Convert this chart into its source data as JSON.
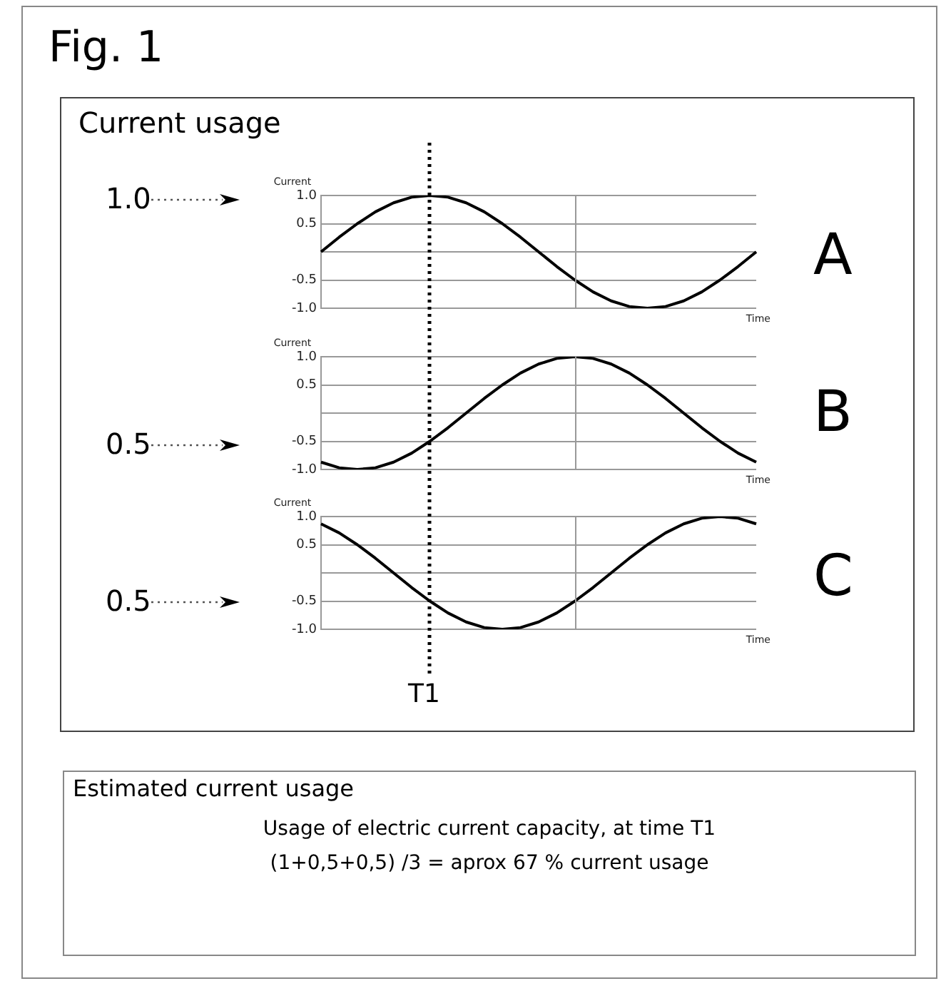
{
  "chart_data": [
    {
      "type": "line",
      "title": "Fig. 1",
      "subtitle": "Current usage",
      "ylabel": "Current",
      "xlabel": "Time",
      "annotations": [
        "1.0",
        "A"
      ],
      "categories": [
        null,
        null,
        null,
        null,
        null,
        null,
        null,
        null,
        null,
        null,
        null,
        null,
        null,
        null,
        null,
        null,
        null,
        null,
        null,
        null,
        null,
        null,
        null,
        null,
        null
      ],
      "ylim": [
        -1,
        1
      ],
      "yticks": [
        {
          "value": 1,
          "label": "1.0"
        },
        {
          "value": 0.5,
          "label": "0.5"
        },
        {
          "value": 0,
          "label": null
        },
        {
          "value": -0.5,
          "label": "-0.5"
        },
        {
          "value": -1,
          "label": "-1.0"
        }
      ],
      "tick_labels": "y",
      "grid": "y",
      "marker": "none",
      "series": [
        {
          "color": "#000000",
          "values": [
            0,
            0.26,
            0.5,
            0.71,
            0.87,
            0.97,
            1,
            0.97,
            0.87,
            0.71,
            0.5,
            0.26,
            0,
            -0.26,
            -0.5,
            -0.71,
            -0.87,
            -0.97,
            -1,
            -0.97,
            -0.87,
            -0.71,
            -0.5,
            -0.26,
            0
          ]
        }
      ]
    },
    {
      "type": "line",
      "ylabel": "Current",
      "xlabel": "Time",
      "annotations": [
        "0.5",
        "B"
      ],
      "categories": [
        null,
        null,
        null,
        null,
        null,
        null,
        null,
        null,
        null,
        null,
        null,
        null,
        null,
        null,
        null,
        null,
        null,
        null,
        null,
        null,
        null,
        null,
        null,
        null,
        null
      ],
      "ylim": [
        -1,
        1
      ],
      "yticks": [
        {
          "value": 1,
          "label": "1.0"
        },
        {
          "value": 0.5,
          "label": "0.5"
        },
        {
          "value": 0,
          "label": null
        },
        {
          "value": -0.5,
          "label": "-0.5"
        },
        {
          "value": -1,
          "label": "-1.0"
        }
      ],
      "tick_labels": "y",
      "grid": "y",
      "marker": "none",
      "series": [
        {
          "color": "#000000",
          "values": [
            -0.87,
            -0.97,
            -1,
            -0.97,
            -0.87,
            -0.71,
            -0.5,
            -0.26,
            0,
            0.26,
            0.5,
            0.71,
            0.87,
            0.97,
            1,
            0.97,
            0.87,
            0.71,
            0.5,
            0.26,
            0,
            -0.26,
            -0.5,
            -0.71,
            -0.87
          ]
        }
      ]
    },
    {
      "type": "line",
      "ylabel": "Current",
      "xlabel": "Time",
      "annotations": [
        "0.5",
        "C",
        "T1"
      ],
      "categories": [
        null,
        null,
        null,
        null,
        null,
        null,
        null,
        null,
        null,
        null,
        null,
        null,
        null,
        null,
        null,
        null,
        null,
        null,
        null,
        null,
        null,
        null,
        null,
        null,
        null
      ],
      "ylim": [
        -1,
        1
      ],
      "yticks": [
        {
          "value": 1,
          "label": "1.0"
        },
        {
          "value": 0.5,
          "label": "0.5"
        },
        {
          "value": 0,
          "label": null
        },
        {
          "value": -0.5,
          "label": "-0.5"
        },
        {
          "value": -1,
          "label": "-1.0"
        }
      ],
      "tick_labels": "y",
      "grid": "y",
      "marker": "none",
      "series": [
        {
          "color": "#000000",
          "values": [
            0.87,
            0.71,
            0.5,
            0.26,
            0,
            -0.26,
            -0.5,
            -0.71,
            -0.87,
            -0.97,
            -1,
            -0.97,
            -0.87,
            -0.71,
            -0.5,
            -0.26,
            0,
            0.26,
            0.5,
            0.71,
            0.87,
            0.97,
            1,
            0.97,
            0.87
          ]
        }
      ]
    },
    {
      "type": "other",
      "title": "Estimated current usage",
      "annotations": [
        "Usage of electric current capacity, at time T1",
        "(1+0,5+0,5) /3 = aprox 67 % current usage"
      ]
    }
  ]
}
